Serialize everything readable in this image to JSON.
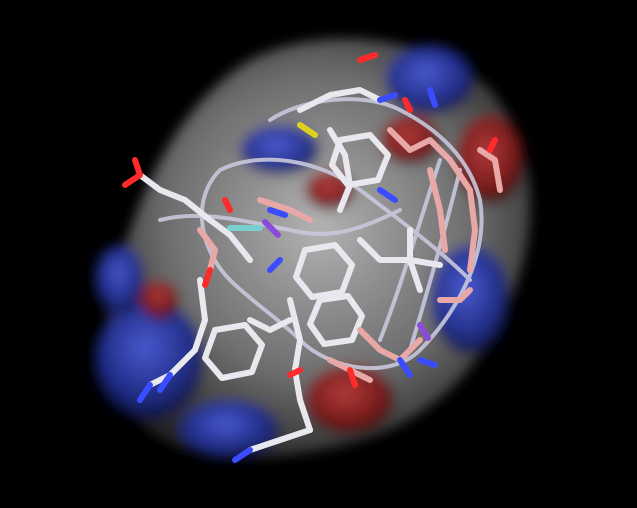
{
  "scene": {
    "background_color": "#000000",
    "surface_colors": {
      "neutral": "#8a8a8a",
      "positive": "#1c2a8c",
      "negative": "#7a1414"
    },
    "atom_colors": {
      "carbon_white": "#e8e8ee",
      "carbon_pink": "#e8a8a8",
      "nitrogen": "#3a4cff",
      "oxygen": "#ff2a2a",
      "sulfur": "#e0d020",
      "fluorine": "#7ad0d0"
    },
    "ribbon_color": "#c8c8dc",
    "icons": [
      "molecular-surface-icon",
      "peptide-stick-model-icon"
    ]
  }
}
